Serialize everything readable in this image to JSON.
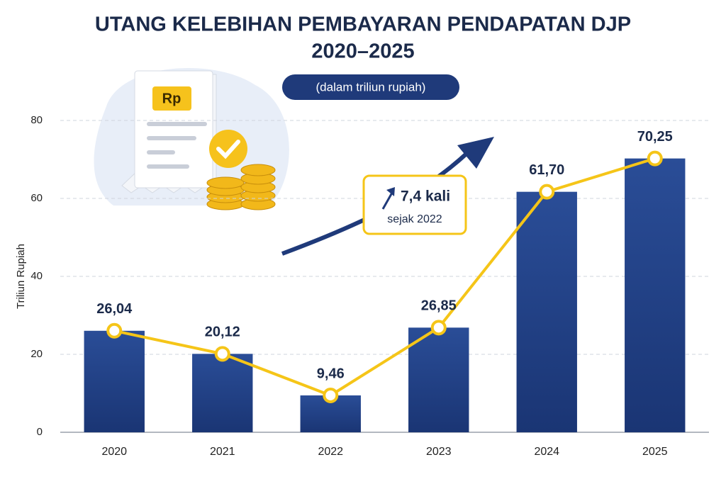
{
  "chart_data": {
    "type": "bar",
    "title": [
      "UTANG KELEBIHAN PEMBAYARAN PENDAPATAN DJP",
      "2020–2025"
    ],
    "subtitle": "(dalam triliun rupiah)",
    "y_label": "Triliun Rupiah",
    "categories": [
      "2020",
      "2021",
      "2022",
      "2023",
      "2024",
      "2025"
    ],
    "values": [
      26.04,
      20.12,
      9.46,
      26.85,
      61.7,
      70.25
    ],
    "value_labels": [
      "26,04",
      "20,12",
      "9,46",
      "26,85",
      "61,70",
      "70,25"
    ],
    "color": "#203f86",
    "line_color": "#f5c518",
    "ylim": [
      0,
      80
    ],
    "yticks": [
      0,
      20,
      40,
      60,
      80
    ],
    "grid": true,
    "annotation": {
      "headline": "7,4 kali",
      "text": "sejak 2022"
    },
    "illustration_label": "Rp"
  }
}
